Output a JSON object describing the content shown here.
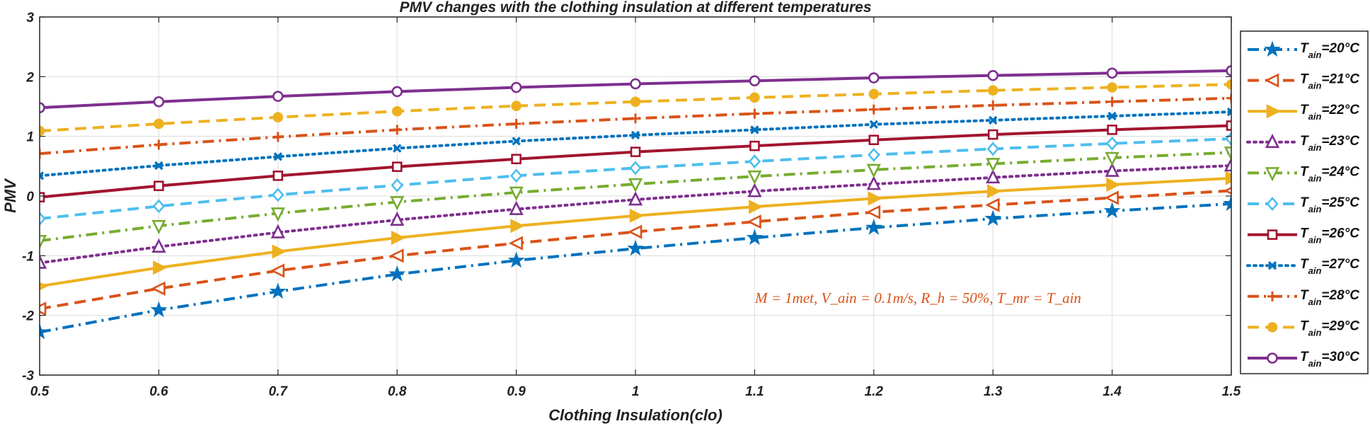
{
  "chart_data": {
    "type": "line",
    "title": "PMV changes with the clothing insulation at different temperatures",
    "xlabel": "Clothing Insulation(clo)",
    "ylabel": "PMV",
    "xlim": [
      0.5,
      1.5
    ],
    "ylim": [
      -3,
      3
    ],
    "grid": true,
    "legend_position": "outside-right",
    "x": [
      0.5,
      0.6,
      0.7,
      0.8,
      0.9,
      1.0,
      1.1,
      1.2,
      1.3,
      1.4,
      1.5
    ],
    "x_tick_labels": [
      "0.5",
      "0.6",
      "0.7",
      "0.8",
      "0.9",
      "1",
      "1.1",
      "1.2",
      "1.3",
      "1.4",
      "1.5"
    ],
    "y_ticks": [
      -3,
      -2,
      -1,
      0,
      1,
      2,
      3
    ],
    "y_tick_labels": [
      "-3",
      "-2",
      "-1",
      "0",
      "1",
      "2",
      "3"
    ],
    "annotation": "M = 1met, V_ain = 0.1m/s, R_h = 50%, T_mr = T_ain",
    "annotation_color": "#d95319",
    "series": [
      {
        "name": "T_ain=20°C",
        "legend_base": "T",
        "legend_sub": "ain",
        "legend_rest": "=20°C",
        "color": "#0072bd",
        "dash": "dashdot",
        "marker": "star",
        "values": [
          -2.28,
          -1.91,
          -1.6,
          -1.31,
          -1.08,
          -0.88,
          -0.7,
          -0.53,
          -0.38,
          -0.25,
          -0.13
        ]
      },
      {
        "name": "T_ain=21°C",
        "legend_base": "T",
        "legend_sub": "ain",
        "legend_rest": "=21°C",
        "color": "#d95319",
        "dash": "dashed",
        "marker": "triangle-left",
        "values": [
          -1.89,
          -1.55,
          -1.25,
          -1.0,
          -0.79,
          -0.6,
          -0.43,
          -0.27,
          -0.15,
          -0.03,
          0.09
        ]
      },
      {
        "name": "T_ain=22°C",
        "legend_base": "T",
        "legend_sub": "ain",
        "legend_rest": "=22°C",
        "color": "#edb120",
        "dash": "solid",
        "marker": "triangle-right",
        "values": [
          -1.51,
          -1.2,
          -0.93,
          -0.7,
          -0.5,
          -0.33,
          -0.18,
          -0.04,
          0.08,
          0.19,
          0.3
        ]
      },
      {
        "name": "T_ain=23°C",
        "legend_base": "T",
        "legend_sub": "ain",
        "legend_rest": "=23°C",
        "color": "#7e2f8e",
        "dash": "dotted",
        "marker": "triangle-up",
        "values": [
          -1.12,
          -0.85,
          -0.61,
          -0.4,
          -0.22,
          -0.06,
          0.08,
          0.2,
          0.31,
          0.42,
          0.51
        ]
      },
      {
        "name": "T_ain=24°C",
        "legend_base": "T",
        "legend_sub": "ain",
        "legend_rest": "=24°C",
        "color": "#77ac30",
        "dash": "dashdot",
        "marker": "triangle-down",
        "values": [
          -0.75,
          -0.5,
          -0.29,
          -0.1,
          0.06,
          0.2,
          0.33,
          0.44,
          0.54,
          0.64,
          0.73
        ]
      },
      {
        "name": "T_ain=25°C",
        "legend_base": "T",
        "legend_sub": "ain",
        "legend_rest": "=25°C",
        "color": "#4dbeee",
        "dash": "dashed",
        "marker": "diamond",
        "values": [
          -0.38,
          -0.17,
          0.02,
          0.18,
          0.34,
          0.47,
          0.58,
          0.69,
          0.79,
          0.88,
          0.96
        ]
      },
      {
        "name": "T_ain=26°C",
        "legend_base": "T",
        "legend_sub": "ain",
        "legend_rest": "=26°C",
        "color": "#a2142f",
        "dash": "solid",
        "marker": "square",
        "values": [
          -0.02,
          0.17,
          0.34,
          0.49,
          0.62,
          0.74,
          0.84,
          0.94,
          1.03,
          1.11,
          1.18
        ]
      },
      {
        "name": "T_ain=27°C",
        "legend_base": "T",
        "legend_sub": "ain",
        "legend_rest": "=27°C",
        "color": "#0072bd",
        "dash": "dotted",
        "marker": "x",
        "values": [
          0.34,
          0.51,
          0.66,
          0.8,
          0.92,
          1.02,
          1.11,
          1.2,
          1.27,
          1.34,
          1.41
        ]
      },
      {
        "name": "T_ain=28°C",
        "legend_base": "T",
        "legend_sub": "ain",
        "legend_rest": "=28°C",
        "color": "#d95319",
        "dash": "dashdot",
        "marker": "plus",
        "values": [
          0.71,
          0.86,
          0.99,
          1.11,
          1.21,
          1.3,
          1.38,
          1.45,
          1.52,
          1.58,
          1.64
        ]
      },
      {
        "name": "T_ain=29°C",
        "legend_base": "T",
        "legend_sub": "ain",
        "legend_rest": "=29°C",
        "color": "#edb120",
        "dash": "dashed",
        "marker": "dot",
        "values": [
          1.09,
          1.21,
          1.32,
          1.42,
          1.51,
          1.58,
          1.65,
          1.71,
          1.77,
          1.82,
          1.87
        ]
      },
      {
        "name": "T_ain=30°C",
        "legend_base": "T",
        "legend_sub": "ain",
        "legend_rest": "=30°C",
        "color": "#7e2f8e",
        "dash": "solid",
        "marker": "circle",
        "values": [
          1.48,
          1.58,
          1.67,
          1.75,
          1.82,
          1.88,
          1.93,
          1.98,
          2.02,
          2.06,
          2.1
        ]
      }
    ]
  }
}
